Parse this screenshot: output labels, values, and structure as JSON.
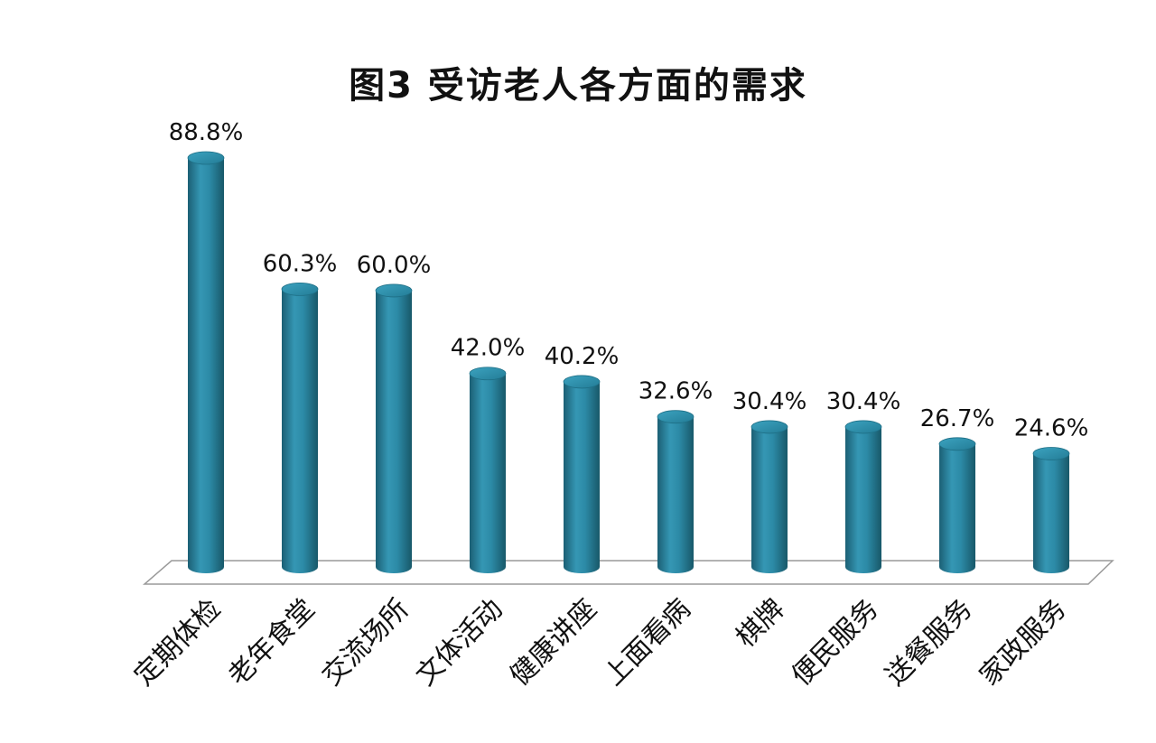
{
  "chart_data": {
    "type": "bar",
    "title": "图3   受访老人各方面的需求",
    "categories": [
      "定期体检",
      "老年食堂",
      "交流场所",
      "文体活动",
      "健康讲座",
      "上面看病",
      "棋牌",
      "便民服务",
      "送餐服务",
      "家政服务"
    ],
    "values": [
      88.8,
      60.3,
      60.0,
      42.0,
      40.2,
      32.6,
      30.4,
      30.4,
      26.7,
      24.6
    ],
    "data_labels": [
      "88.8%",
      "60.3%",
      "60.0%",
      "42.0%",
      "40.2%",
      "32.6%",
      "30.4%",
      "30.4%",
      "26.7%",
      "24.6%"
    ],
    "ylim": [
      0,
      100
    ],
    "style": "3d-cylinder",
    "grid": false,
    "legend": "none",
    "bar_color": "#2a8aa6"
  }
}
